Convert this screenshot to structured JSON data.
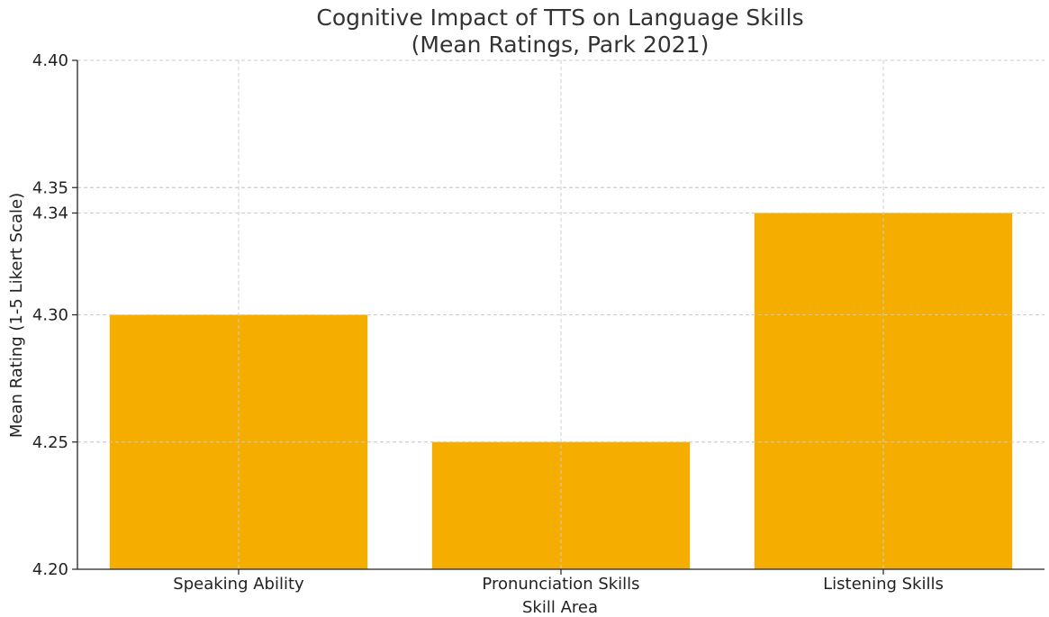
{
  "chart_data": {
    "type": "bar",
    "title": [
      "Cognitive Impact of TTS on Language Skills",
      "(Mean Ratings, Park 2021)"
    ],
    "xlabel": "Skill Area",
    "ylabel": "Mean Rating (1-5 Likert Scale)",
    "categories": [
      "Speaking Ability",
      "Pronunciation Skills",
      "Listening Skills"
    ],
    "values": [
      4.3,
      4.25,
      4.34
    ],
    "ylim": [
      4.2,
      4.4
    ],
    "yticks": [
      "4.20",
      "4.25",
      "4.30",
      "4.34",
      "4.35",
      "4.40"
    ],
    "grid": true,
    "colors": {
      "bar": "#F5AD00"
    }
  }
}
